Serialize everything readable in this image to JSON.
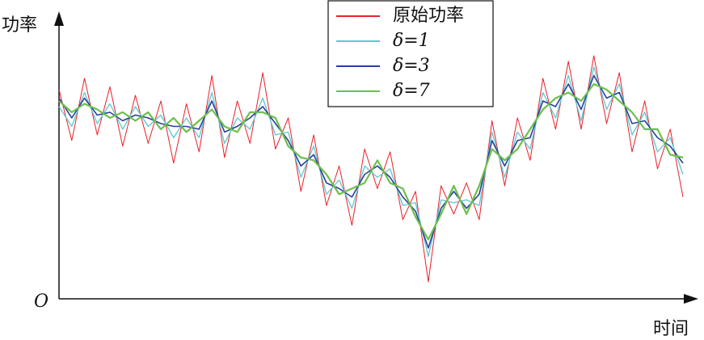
{
  "chart_data": {
    "type": "line",
    "y_label": "功率",
    "x_label": "时间",
    "origin_label": "O",
    "ylim": [
      0,
      1
    ],
    "series": [
      {
        "name": "原始功率",
        "color": "#e8212a",
        "values": [
          0.74,
          0.56,
          0.78,
          0.58,
          0.75,
          0.54,
          0.72,
          0.55,
          0.7,
          0.48,
          0.69,
          0.52,
          0.79,
          0.5,
          0.7,
          0.55,
          0.8,
          0.53,
          0.64,
          0.38,
          0.58,
          0.33,
          0.47,
          0.26,
          0.53,
          0.39,
          0.52,
          0.28,
          0.38,
          0.06,
          0.4,
          0.3,
          0.41,
          0.28,
          0.63,
          0.4,
          0.64,
          0.49,
          0.78,
          0.6,
          0.84,
          0.6,
          0.86,
          0.62,
          0.8,
          0.52,
          0.7,
          0.46,
          0.6,
          0.36
        ]
      },
      {
        "name": "δ=1",
        "color": "#5cc8d0",
        "values": [
          0.68,
          0.61,
          0.73,
          0.62,
          0.69,
          0.6,
          0.68,
          0.61,
          0.65,
          0.57,
          0.64,
          0.57,
          0.73,
          0.55,
          0.64,
          0.6,
          0.71,
          0.58,
          0.59,
          0.43,
          0.54,
          0.37,
          0.42,
          0.32,
          0.47,
          0.43,
          0.46,
          0.33,
          0.34,
          0.15,
          0.35,
          0.34,
          0.35,
          0.33,
          0.59,
          0.43,
          0.59,
          0.53,
          0.73,
          0.64,
          0.79,
          0.63,
          0.82,
          0.67,
          0.76,
          0.58,
          0.66,
          0.52,
          0.57,
          0.44
        ]
      },
      {
        "name": "δ=3",
        "color": "#2a3f9c",
        "values": [
          0.71,
          0.64,
          0.71,
          0.65,
          0.66,
          0.63,
          0.65,
          0.64,
          0.62,
          0.61,
          0.61,
          0.6,
          0.7,
          0.59,
          0.61,
          0.64,
          0.68,
          0.62,
          0.56,
          0.47,
          0.51,
          0.41,
          0.39,
          0.36,
          0.44,
          0.47,
          0.43,
          0.36,
          0.31,
          0.18,
          0.32,
          0.38,
          0.32,
          0.37,
          0.56,
          0.47,
          0.56,
          0.57,
          0.7,
          0.68,
          0.76,
          0.67,
          0.79,
          0.71,
          0.73,
          0.62,
          0.63,
          0.57,
          0.54,
          0.48
        ]
      },
      {
        "name": "δ=7",
        "color": "#6cc04a",
        "values": [
          0.7,
          0.66,
          0.69,
          0.67,
          0.64,
          0.66,
          0.63,
          0.66,
          0.6,
          0.64,
          0.59,
          0.63,
          0.67,
          0.61,
          0.59,
          0.66,
          0.66,
          0.64,
          0.54,
          0.5,
          0.49,
          0.44,
          0.37,
          0.39,
          0.41,
          0.49,
          0.41,
          0.39,
          0.29,
          0.21,
          0.3,
          0.4,
          0.3,
          0.4,
          0.53,
          0.49,
          0.53,
          0.6,
          0.67,
          0.71,
          0.73,
          0.7,
          0.76,
          0.74,
          0.7,
          0.66,
          0.6,
          0.6,
          0.51,
          0.5
        ]
      }
    ]
  }
}
